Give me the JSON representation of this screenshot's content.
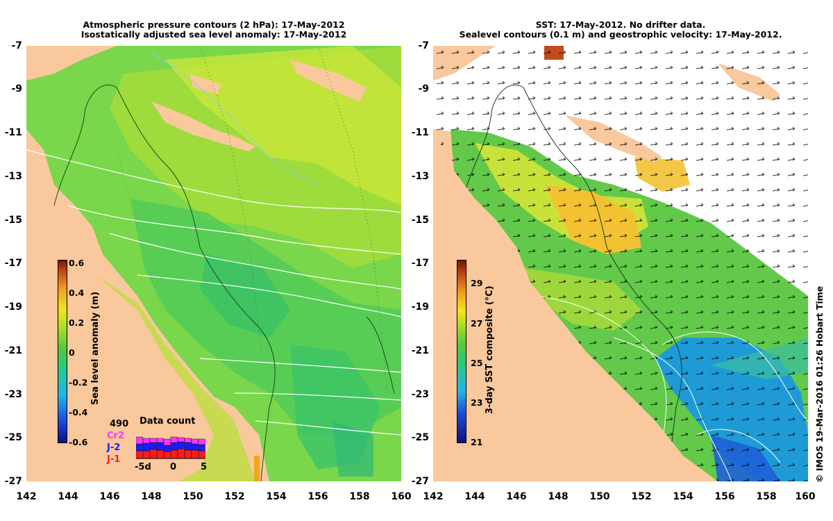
{
  "left_panel": {
    "title_line1": "Atmospheric pressure contours (2 hPa): 17-May-2012",
    "title_line2": "Isostatically adjusted sea level anomaly: 17-May-2012",
    "colorbar": {
      "label": "Sea level anomaly (m)",
      "ticks": [
        "0.6",
        "0.4",
        "0.2",
        "0",
        "-0.2",
        "-0.4",
        "-0.6"
      ],
      "range": [
        -0.6,
        0.6
      ]
    },
    "data_count": {
      "total": "490",
      "title": "Data count",
      "missions": [
        {
          "name": "Cr2",
          "color": "#ff33ff"
        },
        {
          "name": "J-2",
          "color": "#1a1aff"
        },
        {
          "name": "J-1",
          "color": "#ff1a1a"
        }
      ],
      "x_ticks": [
        "-5d",
        "0",
        "5"
      ],
      "bars_j1": [
        11,
        11,
        13,
        12,
        10,
        12,
        14,
        12,
        12,
        11
      ],
      "bars_j2": [
        10,
        11,
        10,
        11,
        9,
        11,
        10,
        11,
        9,
        9
      ],
      "bars_cr2": [
        10,
        7,
        6,
        6,
        9,
        8,
        6,
        6,
        7,
        8
      ]
    }
  },
  "right_panel": {
    "title_line1": "SST: 17-May-2012. No drifter data.",
    "title_line2": "Sealevel contours (0.1 m) and geostrophic velocity: 17-May-2012.",
    "colorbar": {
      "label": "3-day SST composite (°C)",
      "ticks": [
        "29",
        "27",
        "25",
        "23",
        "21"
      ],
      "range": [
        20.5,
        30
      ]
    }
  },
  "axes": {
    "y_ticks": [
      "-7",
      "-9",
      "-11",
      "-13",
      "-15",
      "-17",
      "-19",
      "-21",
      "-23",
      "-25",
      "-27"
    ],
    "x_ticks": [
      "142",
      "144",
      "146",
      "148",
      "150",
      "152",
      "154",
      "156",
      "158",
      "160"
    ],
    "lat_range": [
      -27,
      -7
    ],
    "lon_range": [
      142,
      160
    ]
  },
  "credit": "© IMOS 19-Mar-2016 01:26 Hobart Time",
  "colors": {
    "land": "#f9c89c",
    "sea_green": "#6fd44a",
    "sea_yellow": "#c8e63a",
    "sst_warm": "#f2d33a",
    "sst_cool": "#2a7ee0",
    "no_data": "#ffffff"
  }
}
